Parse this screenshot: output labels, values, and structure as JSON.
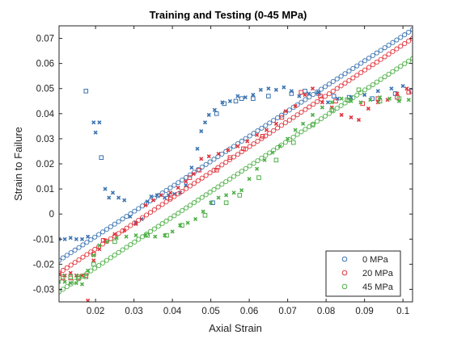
{
  "chart_data": {
    "type": "scatter",
    "title": "Training and Testing (0-45 MPa)",
    "xlabel": "Axial Strain",
    "ylabel": "Strain to Failure",
    "xlim": [
      0.0105,
      0.1025
    ],
    "ylim": [
      -0.035,
      0.075
    ],
    "xticks": [
      0.02,
      0.03,
      0.04,
      0.05,
      0.06,
      0.07,
      0.08,
      0.09,
      0.1
    ],
    "xtick_labels": [
      "0.02",
      "0.03",
      "0.04",
      "0.05",
      "0.06",
      "0.07",
      "0.08",
      "0.09",
      "0.1"
    ],
    "yticks": [
      -0.03,
      -0.02,
      -0.01,
      0,
      0.01,
      0.02,
      0.03,
      0.04,
      0.05,
      0.06,
      0.07
    ],
    "ytick_labels": [
      "-0.03",
      "-0.02",
      "-0.01",
      "0",
      "0.01",
      "0.02",
      "0.03",
      "0.04",
      "0.05",
      "0.06",
      "0.07"
    ],
    "grid": false,
    "legend": {
      "position": "bottom-right",
      "entries": [
        "0 MPa",
        "20 MPa",
        "45 MPa"
      ]
    },
    "series": [
      {
        "name": "0 MPa",
        "color": "#3b73b0",
        "train_line": {
          "marker": "circle",
          "x_start": 0.0105,
          "x_end": 0.1025,
          "y_start": -0.0185,
          "y_end": 0.0735,
          "n_points": 90
        },
        "test_points": [
          [
            0.0175,
            0.049
          ],
          [
            0.0215,
            0.0225
          ],
          [
            0.0505,
            0.0045
          ],
          [
            0.0515,
            0.04
          ],
          [
            0.0535,
            0.044
          ],
          [
            0.0565,
            0.045
          ],
          [
            0.058,
            0.046
          ],
          [
            0.061,
            0.046
          ],
          [
            0.065,
            0.047
          ],
          [
            0.071,
            0.048
          ],
          [
            0.0745,
            0.049
          ],
          [
            0.078,
            0.048
          ],
          [
            0.082,
            0.047
          ],
          [
            0.086,
            0.0465
          ],
          [
            0.092,
            0.046
          ],
          [
            0.098,
            0.048
          ],
          [
            0.1022,
            0.049
          ]
        ],
        "scatter_points": [
          [
            0.0105,
            -0.01
          ],
          [
            0.012,
            -0.01
          ],
          [
            0.0135,
            -0.0095
          ],
          [
            0.015,
            -0.01
          ],
          [
            0.0165,
            -0.01
          ],
          [
            0.018,
            -0.009
          ],
          [
            0.0195,
            0.0365
          ],
          [
            0.02,
            0.0325
          ],
          [
            0.021,
            0.0365
          ],
          [
            0.0225,
            0.01
          ],
          [
            0.0235,
            0.0065
          ],
          [
            0.0245,
            0.0085
          ],
          [
            0.026,
            0.0065
          ],
          [
            0.0275,
            0.0055
          ],
          [
            0.029,
            -0.001
          ],
          [
            0.0305,
            -0.0035
          ],
          [
            0.032,
            -0.002
          ],
          [
            0.0335,
            0.005
          ],
          [
            0.0345,
            0.007
          ],
          [
            0.036,
            0.0075
          ],
          [
            0.038,
            0.0065
          ],
          [
            0.039,
            0.0075
          ],
          [
            0.0405,
            0.008
          ],
          [
            0.042,
            0.0085
          ],
          [
            0.0435,
            0.0115
          ],
          [
            0.045,
            0.0185
          ],
          [
            0.0465,
            0.026
          ],
          [
            0.0475,
            0.033
          ],
          [
            0.0485,
            0.0365
          ],
          [
            0.0495,
            0.0395
          ],
          [
            0.051,
            0.0415
          ],
          [
            0.053,
            0.0445
          ],
          [
            0.055,
            0.045
          ],
          [
            0.057,
            0.047
          ],
          [
            0.059,
            0.0465
          ],
          [
            0.061,
            0.0475
          ],
          [
            0.063,
            0.0495
          ],
          [
            0.065,
            0.05
          ],
          [
            0.067,
            0.0495
          ],
          [
            0.069,
            0.0505
          ],
          [
            0.071,
            0.049
          ],
          [
            0.073,
            0.047
          ],
          [
            0.0755,
            0.048
          ],
          [
            0.078,
            0.0485
          ],
          [
            0.0805,
            0.0445
          ],
          [
            0.083,
            0.046
          ],
          [
            0.0865,
            0.0465
          ],
          [
            0.09,
            0.0475
          ],
          [
            0.0935,
            0.049
          ],
          [
            0.097,
            0.05
          ],
          [
            0.1,
            0.051
          ]
        ]
      },
      {
        "name": "20 MPa",
        "color": "#e0353c",
        "train_line": {
          "marker": "circle",
          "x_start": 0.0105,
          "x_end": 0.1025,
          "y_start": -0.0235,
          "y_end": 0.07,
          "n_points": 90
        },
        "test_points": [
          [
            0.0115,
            -0.0255
          ],
          [
            0.0135,
            -0.0255
          ],
          [
            0.0155,
            -0.0255
          ],
          [
            0.0175,
            -0.0245
          ],
          [
            0.0195,
            -0.016
          ],
          [
            0.022,
            -0.0105
          ],
          [
            0.0395,
            0.0065
          ],
          [
            0.0445,
            0.0145
          ],
          [
            0.047,
            0.0175
          ],
          [
            0.0515,
            0.0175
          ],
          [
            0.055,
            0.0225
          ],
          [
            0.0585,
            0.026
          ],
          [
            0.0635,
            0.031
          ],
          [
            0.0685,
            0.0385
          ],
          [
            0.0735,
            0.0485
          ],
          [
            0.0785,
            0.047
          ],
          [
            0.0825,
            0.045
          ],
          [
            0.0895,
            0.044
          ],
          [
            0.0935,
            0.046
          ],
          [
            0.0985,
            0.0465
          ],
          [
            0.1015,
            0.0485
          ]
        ],
        "scatter_points": [
          [
            0.0105,
            -0.024
          ],
          [
            0.012,
            -0.0245
          ],
          [
            0.0135,
            -0.0235
          ],
          [
            0.015,
            -0.0245
          ],
          [
            0.0165,
            -0.0245
          ],
          [
            0.018,
            -0.0345
          ],
          [
            0.0195,
            -0.0185
          ],
          [
            0.021,
            -0.014
          ],
          [
            0.0225,
            -0.0105
          ],
          [
            0.025,
            -0.008
          ],
          [
            0.0275,
            -0.0065
          ],
          [
            0.0305,
            -0.004
          ],
          [
            0.033,
            0.0035
          ],
          [
            0.035,
            0.0055
          ],
          [
            0.037,
            0.0075
          ],
          [
            0.0395,
            0.0085
          ],
          [
            0.0415,
            0.0105
          ],
          [
            0.0435,
            0.013
          ],
          [
            0.0455,
            0.016
          ],
          [
            0.0475,
            0.022
          ],
          [
            0.0495,
            0.023
          ],
          [
            0.052,
            0.024
          ],
          [
            0.0545,
            0.0255
          ],
          [
            0.057,
            0.027
          ],
          [
            0.0595,
            0.029
          ],
          [
            0.062,
            0.0315
          ],
          [
            0.0645,
            0.0335
          ],
          [
            0.067,
            0.036
          ],
          [
            0.0695,
            0.041
          ],
          [
            0.072,
            0.043
          ],
          [
            0.0745,
            0.0475
          ],
          [
            0.0765,
            0.05
          ],
          [
            0.079,
            0.0445
          ],
          [
            0.0815,
            0.0425
          ],
          [
            0.084,
            0.0395
          ],
          [
            0.0865,
            0.0385
          ],
          [
            0.0885,
            0.0375
          ],
          [
            0.091,
            0.042
          ],
          [
            0.0935,
            0.0445
          ],
          [
            0.096,
            0.0455
          ],
          [
            0.0985,
            0.048
          ],
          [
            0.101,
            0.05
          ]
        ]
      },
      {
        "name": "45 MPa",
        "color": "#4fb048",
        "train_line": {
          "marker": "circle",
          "x_start": 0.0105,
          "x_end": 0.1025,
          "y_start": -0.031,
          "y_end": 0.062,
          "n_points": 90
        },
        "test_points": [
          [
            0.0115,
            -0.025
          ],
          [
            0.0135,
            -0.025
          ],
          [
            0.0155,
            -0.025
          ],
          [
            0.0175,
            -0.025
          ],
          [
            0.0195,
            -0.02
          ],
          [
            0.025,
            -0.011
          ],
          [
            0.0335,
            -0.0085
          ],
          [
            0.0385,
            -0.0085
          ],
          [
            0.0425,
            -0.0045
          ],
          [
            0.0485,
            -0.0005
          ],
          [
            0.054,
            0.0045
          ],
          [
            0.0575,
            0.0075
          ],
          [
            0.0625,
            0.0145
          ],
          [
            0.067,
            0.0215
          ],
          [
            0.0715,
            0.0285
          ],
          [
            0.0765,
            0.0355
          ],
          [
            0.0815,
            0.0415
          ],
          [
            0.0855,
            0.0455
          ],
          [
            0.0885,
            0.0495
          ],
          [
            0.094,
            0.045
          ],
          [
            0.099,
            0.046
          ]
        ],
        "scatter_points": [
          [
            0.0105,
            -0.027
          ],
          [
            0.012,
            -0.027
          ],
          [
            0.0135,
            -0.0275
          ],
          [
            0.015,
            -0.0275
          ],
          [
            0.0165,
            -0.028
          ],
          [
            0.018,
            -0.0225
          ],
          [
            0.0195,
            -0.0165
          ],
          [
            0.021,
            -0.0125
          ],
          [
            0.023,
            -0.011
          ],
          [
            0.0255,
            -0.0095
          ],
          [
            0.028,
            -0.009
          ],
          [
            0.0305,
            -0.0085
          ],
          [
            0.033,
            -0.0085
          ],
          [
            0.0355,
            -0.009
          ],
          [
            0.038,
            -0.0085
          ],
          [
            0.04,
            -0.007
          ],
          [
            0.042,
            -0.0045
          ],
          [
            0.044,
            -0.0035
          ],
          [
            0.046,
            -0.002
          ],
          [
            0.048,
            0.001
          ],
          [
            0.05,
            0.0045
          ],
          [
            0.052,
            0.0065
          ],
          [
            0.054,
            0.0075
          ],
          [
            0.056,
            0.0085
          ],
          [
            0.058,
            0.0095
          ],
          [
            0.06,
            0.014
          ],
          [
            0.062,
            0.018
          ],
          [
            0.064,
            0.0215
          ],
          [
            0.066,
            0.0245
          ],
          [
            0.068,
            0.027
          ],
          [
            0.07,
            0.03
          ],
          [
            0.072,
            0.0335
          ],
          [
            0.074,
            0.036
          ],
          [
            0.0765,
            0.0395
          ],
          [
            0.079,
            0.0425
          ],
          [
            0.0815,
            0.0445
          ],
          [
            0.084,
            0.046
          ],
          [
            0.0865,
            0.045
          ],
          [
            0.089,
            0.0445
          ],
          [
            0.0915,
            0.0455
          ],
          [
            0.094,
            0.0465
          ],
          [
            0.0965,
            0.046
          ],
          [
            0.099,
            0.045
          ],
          [
            0.1015,
            0.0455
          ]
        ]
      }
    ]
  }
}
